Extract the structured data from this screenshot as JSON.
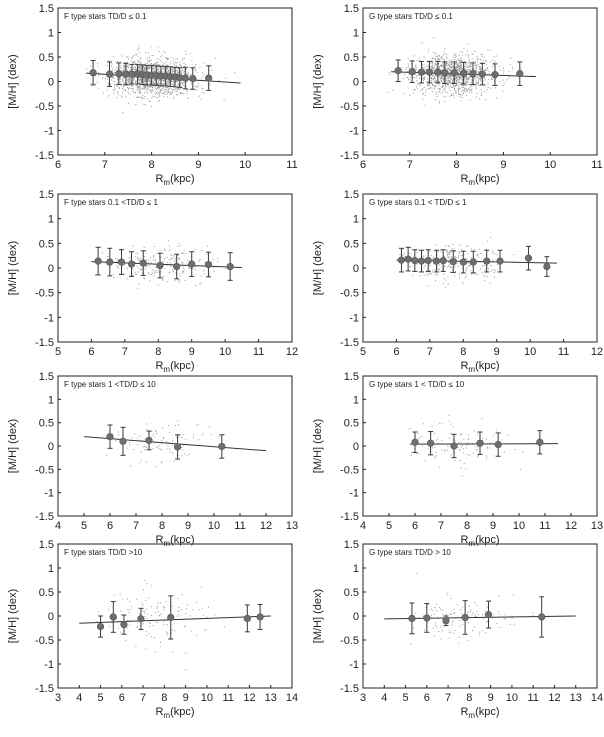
{
  "figure": {
    "description_note": "8 scatter panels of [M/H] vs mean galactocentric radius, F (left) and G (right) type stars, 4 TD/D bins"
  },
  "chart_data": [
    {
      "id": "f1",
      "type": "scatter",
      "title": "F type stars  TD/D ≤ 0.1",
      "xlabel_main": "R",
      "xlabel_sub": "m",
      "xlabel_rest": "(kpc)",
      "ylabel": "[M/H] (dex)",
      "xlim": [
        6,
        11
      ],
      "ylim": [
        -1.5,
        1.5
      ],
      "xticks": [
        "6",
        "7",
        "8",
        "9",
        "10",
        "11"
      ],
      "yticks": [
        "1.5",
        "1",
        "0.5",
        "0",
        "-0.5",
        "-1",
        "-1.5"
      ],
      "scatter": {
        "x_range": [
          6.5,
          9.9
        ],
        "center": 8.0,
        "spread": 0.75,
        "y_mean": 0.1,
        "y_sd": 0.2,
        "count": 1400
      },
      "fit": {
        "x": [
          6.6,
          9.9
        ],
        "y": [
          0.17,
          -0.03
        ]
      },
      "points": [
        {
          "x": 6.75,
          "y": 0.18,
          "err": 0.25
        },
        {
          "x": 7.1,
          "y": 0.15,
          "err": 0.25
        },
        {
          "x": 7.3,
          "y": 0.16,
          "err": 0.22
        },
        {
          "x": 7.45,
          "y": 0.15,
          "err": 0.22
        },
        {
          "x": 7.58,
          "y": 0.15,
          "err": 0.2
        },
        {
          "x": 7.7,
          "y": 0.15,
          "err": 0.2
        },
        {
          "x": 7.8,
          "y": 0.14,
          "err": 0.2
        },
        {
          "x": 7.9,
          "y": 0.13,
          "err": 0.2
        },
        {
          "x": 8.0,
          "y": 0.13,
          "err": 0.2
        },
        {
          "x": 8.1,
          "y": 0.12,
          "err": 0.2
        },
        {
          "x": 8.2,
          "y": 0.11,
          "err": 0.2
        },
        {
          "x": 8.3,
          "y": 0.11,
          "err": 0.2
        },
        {
          "x": 8.4,
          "y": 0.1,
          "err": 0.2
        },
        {
          "x": 8.5,
          "y": 0.09,
          "err": 0.2
        },
        {
          "x": 8.6,
          "y": 0.08,
          "err": 0.2
        },
        {
          "x": 8.72,
          "y": 0.07,
          "err": 0.22
        },
        {
          "x": 8.88,
          "y": 0.06,
          "err": 0.22
        },
        {
          "x": 9.22,
          "y": 0.07,
          "err": 0.25
        }
      ]
    },
    {
      "id": "g1",
      "type": "scatter",
      "title": "G type stars  TD/D ≤ 0.1",
      "xlabel_main": "R",
      "xlabel_sub": "m",
      "xlabel_rest": "(kpc)",
      "ylabel": "[M/H] (dex)",
      "xlim": [
        6,
        11
      ],
      "ylim": [
        -1.5,
        1.5
      ],
      "xticks": [
        "6",
        "7",
        "8",
        "9",
        "10",
        "11"
      ],
      "yticks": [
        "1.5",
        "1",
        "0.5",
        "0",
        "-0.5",
        "-1",
        "-1.5"
      ],
      "scatter": {
        "x_range": [
          6.5,
          9.7
        ],
        "center": 7.9,
        "spread": 0.75,
        "y_mean": 0.15,
        "y_sd": 0.2,
        "count": 1200
      },
      "fit": {
        "x": [
          6.6,
          9.7
        ],
        "y": [
          0.2,
          0.1
        ]
      },
      "points": [
        {
          "x": 6.75,
          "y": 0.22,
          "err": 0.22
        },
        {
          "x": 7.05,
          "y": 0.2,
          "err": 0.22
        },
        {
          "x": 7.25,
          "y": 0.19,
          "err": 0.22
        },
        {
          "x": 7.42,
          "y": 0.19,
          "err": 0.22
        },
        {
          "x": 7.6,
          "y": 0.19,
          "err": 0.22
        },
        {
          "x": 7.75,
          "y": 0.18,
          "err": 0.22
        },
        {
          "x": 7.95,
          "y": 0.18,
          "err": 0.22
        },
        {
          "x": 8.15,
          "y": 0.17,
          "err": 0.22
        },
        {
          "x": 8.35,
          "y": 0.16,
          "err": 0.22
        },
        {
          "x": 8.55,
          "y": 0.15,
          "err": 0.22
        },
        {
          "x": 8.82,
          "y": 0.14,
          "err": 0.22
        },
        {
          "x": 9.35,
          "y": 0.16,
          "err": 0.24
        }
      ]
    },
    {
      "id": "f2",
      "type": "scatter",
      "title": "F type stars  0.1 <TD/D ≤ 1",
      "xlabel_main": "R",
      "xlabel_sub": "m",
      "xlabel_rest": "(kpc)",
      "ylabel": "[M/H] (dex)",
      "xlim": [
        5,
        12
      ],
      "ylim": [
        -1.5,
        1.5
      ],
      "xticks": [
        "5",
        "6",
        "7",
        "8",
        "9",
        "10",
        "11",
        "12"
      ],
      "yticks": [
        "1.5",
        "1",
        "0.5",
        "0",
        "-0.5",
        "-1",
        "-1.5"
      ],
      "scatter": {
        "x_range": [
          5.9,
          10.5
        ],
        "center": 8.0,
        "spread": 1.3,
        "y_mean": 0.08,
        "y_sd": 0.18,
        "count": 230
      },
      "fit": {
        "x": [
          6.0,
          10.5
        ],
        "y": [
          0.13,
          0.01
        ]
      },
      "points": [
        {
          "x": 6.2,
          "y": 0.14,
          "err": 0.28
        },
        {
          "x": 6.55,
          "y": 0.12,
          "err": 0.28
        },
        {
          "x": 6.9,
          "y": 0.12,
          "err": 0.25
        },
        {
          "x": 7.2,
          "y": 0.08,
          "err": 0.25
        },
        {
          "x": 7.55,
          "y": 0.1,
          "err": 0.25
        },
        {
          "x": 8.05,
          "y": 0.05,
          "err": 0.25
        },
        {
          "x": 8.55,
          "y": 0.03,
          "err": 0.25
        },
        {
          "x": 9.0,
          "y": 0.08,
          "err": 0.25
        },
        {
          "x": 9.5,
          "y": 0.07,
          "err": 0.25
        },
        {
          "x": 10.15,
          "y": 0.03,
          "err": 0.28
        }
      ]
    },
    {
      "id": "g2",
      "type": "scatter",
      "title": "G type stars  0.1 < TD/D ≤ 1",
      "xlabel_main": "R",
      "xlabel_sub": "m",
      "xlabel_rest": "(kpc)",
      "ylabel": "[M/H] (dex)",
      "xlim": [
        5,
        12
      ],
      "ylim": [
        -1.5,
        1.5
      ],
      "xticks": [
        "5",
        "6",
        "7",
        "8",
        "9",
        "10",
        "11",
        "12"
      ],
      "yticks": [
        "1.5",
        "1",
        "0.5",
        "0",
        "-0.5",
        "-1",
        "-1.5"
      ],
      "scatter": {
        "x_range": [
          6.0,
          10.5
        ],
        "center": 7.6,
        "spread": 1.1,
        "y_mean": 0.12,
        "y_sd": 0.18,
        "count": 260
      },
      "fit": {
        "x": [
          6.0,
          10.8
        ],
        "y": [
          0.16,
          0.1
        ]
      },
      "points": [
        {
          "x": 6.15,
          "y": 0.16,
          "err": 0.24
        },
        {
          "x": 6.35,
          "y": 0.18,
          "err": 0.24
        },
        {
          "x": 6.55,
          "y": 0.15,
          "err": 0.22
        },
        {
          "x": 6.75,
          "y": 0.14,
          "err": 0.22
        },
        {
          "x": 6.95,
          "y": 0.15,
          "err": 0.22
        },
        {
          "x": 7.2,
          "y": 0.14,
          "err": 0.22
        },
        {
          "x": 7.4,
          "y": 0.15,
          "err": 0.22
        },
        {
          "x": 7.7,
          "y": 0.13,
          "err": 0.22
        },
        {
          "x": 8.0,
          "y": 0.12,
          "err": 0.22
        },
        {
          "x": 8.3,
          "y": 0.12,
          "err": 0.22
        },
        {
          "x": 8.7,
          "y": 0.14,
          "err": 0.22
        },
        {
          "x": 9.1,
          "y": 0.14,
          "err": 0.22
        },
        {
          "x": 9.95,
          "y": 0.2,
          "err": 0.24
        },
        {
          "x": 10.5,
          "y": 0.03,
          "err": 0.2
        }
      ]
    },
    {
      "id": "f3",
      "type": "scatter",
      "title": "F type stars  1 <TD/D ≤ 10",
      "xlabel_main": "R",
      "xlabel_sub": "m",
      "xlabel_rest": "(kpc)",
      "ylabel": "[M/H] (dex)",
      "xlim": [
        4,
        13
      ],
      "ylim": [
        -1.5,
        1.5
      ],
      "xticks": [
        "4",
        "5",
        "6",
        "7",
        "8",
        "9",
        "10",
        "11",
        "12",
        "13"
      ],
      "yticks": [
        "1.5",
        "1",
        "0.5",
        "0",
        "-0.5",
        "-1",
        "-1.5"
      ],
      "scatter": {
        "x_range": [
          5.6,
          11.2
        ],
        "center": 8.0,
        "spread": 1.7,
        "y_mean": 0.05,
        "y_sd": 0.22,
        "count": 95
      },
      "fit": {
        "x": [
          5.0,
          12.0
        ],
        "y": [
          0.2,
          -0.1
        ]
      },
      "points": [
        {
          "x": 6.0,
          "y": 0.2,
          "err": 0.25
        },
        {
          "x": 6.5,
          "y": 0.1,
          "err": 0.3
        },
        {
          "x": 7.5,
          "y": 0.12,
          "err": 0.2
        },
        {
          "x": 8.6,
          "y": -0.02,
          "err": 0.26
        },
        {
          "x": 10.3,
          "y": -0.01,
          "err": 0.25
        }
      ]
    },
    {
      "id": "g3",
      "type": "scatter",
      "title": "G type stars  1 < TD/D ≤ 10",
      "xlabel_main": "R",
      "xlabel_sub": "m",
      "xlabel_rest": "(kpc)",
      "ylabel": "[M/H] (dex)",
      "xlim": [
        4,
        13
      ],
      "ylim": [
        -1.5,
        1.5
      ],
      "xticks": [
        "4",
        "5",
        "6",
        "7",
        "8",
        "9",
        "10",
        "11",
        "12",
        "13"
      ],
      "yticks": [
        "1.5",
        "1",
        "0.5",
        "0",
        "-0.5",
        "-1",
        "-1.5"
      ],
      "scatter": {
        "x_range": [
          5.6,
          11.0
        ],
        "center": 7.5,
        "spread": 1.5,
        "y_mean": 0.05,
        "y_sd": 0.22,
        "count": 110
      },
      "fit": {
        "x": [
          5.8,
          11.5
        ],
        "y": [
          0.04,
          0.05
        ]
      },
      "points": [
        {
          "x": 6.0,
          "y": 0.08,
          "err": 0.22
        },
        {
          "x": 6.6,
          "y": 0.06,
          "err": 0.25
        },
        {
          "x": 7.5,
          "y": 0.0,
          "err": 0.25
        },
        {
          "x": 8.5,
          "y": 0.06,
          "err": 0.24
        },
        {
          "x": 9.2,
          "y": 0.03,
          "err": 0.25
        },
        {
          "x": 10.8,
          "y": 0.08,
          "err": 0.25
        }
      ]
    },
    {
      "id": "f4",
      "type": "scatter",
      "title": "F type stars  TD/D >10",
      "xlabel_main": "R",
      "xlabel_sub": "m",
      "xlabel_rest": "(kpc)",
      "ylabel": "[M/H] (dex)",
      "xlim": [
        3,
        14
      ],
      "ylim": [
        -1.5,
        1.5
      ],
      "xticks": [
        "3",
        "4",
        "5",
        "6",
        "7",
        "8",
        "9",
        "10",
        "11",
        "12",
        "13",
        "14"
      ],
      "yticks": [
        "1.5",
        "1",
        "0.5",
        "0",
        "-0.5",
        "-1",
        "-1.5"
      ],
      "scatter": {
        "x_range": [
          4.8,
          12.8
        ],
        "center": 7.5,
        "spread": 2.4,
        "y_mean": -0.05,
        "y_sd": 0.3,
        "count": 130
      },
      "fit": {
        "x": [
          4.0,
          13.0
        ],
        "y": [
          -0.15,
          0.0
        ]
      },
      "points": [
        {
          "x": 5.0,
          "y": -0.22,
          "err": 0.22
        },
        {
          "x": 5.6,
          "y": -0.02,
          "err": 0.32
        },
        {
          "x": 6.1,
          "y": -0.18,
          "err": 0.2
        },
        {
          "x": 6.9,
          "y": -0.06,
          "err": 0.22
        },
        {
          "x": 8.3,
          "y": -0.03,
          "err": 0.45
        },
        {
          "x": 11.9,
          "y": -0.05,
          "err": 0.28
        },
        {
          "x": 12.5,
          "y": -0.02,
          "err": 0.26
        }
      ]
    },
    {
      "id": "g4",
      "type": "scatter",
      "title": "G type stars  TD/D > 10",
      "xlabel_main": "R",
      "xlabel_sub": "m",
      "xlabel_rest": "(kpc)",
      "ylabel": "[M/H] (dex)",
      "xlim": [
        3,
        14
      ],
      "ylim": [
        -1.5,
        1.5
      ],
      "xticks": [
        "3",
        "4",
        "5",
        "6",
        "7",
        "8",
        "9",
        "10",
        "11",
        "12",
        "13",
        "14"
      ],
      "yticks": [
        "1.5",
        "1",
        "0.5",
        "0",
        "-0.5",
        "-1",
        "-1.5"
      ],
      "scatter": {
        "x_range": [
          4.8,
          12.2
        ],
        "center": 7.5,
        "spread": 2.2,
        "y_mean": -0.05,
        "y_sd": 0.28,
        "count": 120
      },
      "fit": {
        "x": [
          4.0,
          13.0
        ],
        "y": [
          -0.06,
          0.0
        ]
      },
      "points": [
        {
          "x": 5.3,
          "y": -0.05,
          "err": 0.32
        },
        {
          "x": 6.0,
          "y": -0.04,
          "err": 0.3
        },
        {
          "x": 6.9,
          "y": -0.1,
          "err": 0.1
        },
        {
          "x": 7.8,
          "y": -0.03,
          "err": 0.35
        },
        {
          "x": 8.9,
          "y": 0.03,
          "err": 0.28
        },
        {
          "x": 11.4,
          "y": -0.02,
          "err": 0.42
        }
      ]
    }
  ],
  "style": {
    "axis": "#222222",
    "scatter": "#9a9a9a",
    "marker": "#6e6e6e",
    "fit": "#333333",
    "errbar": "#3a3a3a"
  }
}
